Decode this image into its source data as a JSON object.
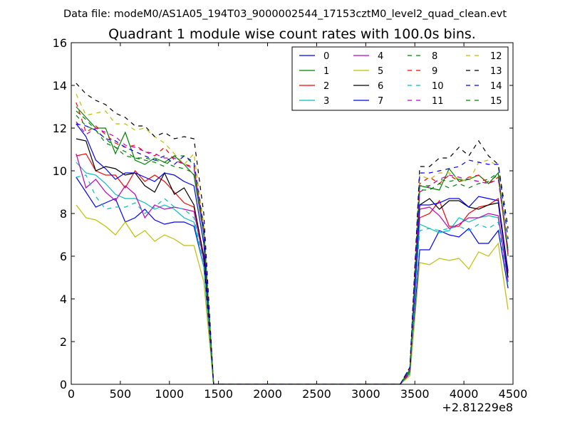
{
  "chart_data": {
    "type": "line",
    "suptitle": "Data file: modeM0/AS1A05_194T03_9000002544_17153cztM0_level2_quad_clean.evt",
    "title": "Quadrant 1 module wise count rates with 100.0s bins.",
    "xlabel": "",
    "ylabel": "",
    "xlim": [
      0,
      4500
    ],
    "ylim": [
      0,
      16
    ],
    "x_offset_label": "+2.81229e8",
    "xticks": [
      0,
      500,
      1000,
      1500,
      2000,
      2500,
      3000,
      3500,
      4000,
      4500
    ],
    "xtick_labels": [
      "0",
      "500",
      "1000",
      "1500",
      "2000",
      "2500",
      "3000",
      "3500",
      "4000",
      "4500"
    ],
    "yticks": [
      0,
      2,
      4,
      6,
      8,
      10,
      12,
      14,
      16
    ],
    "ytick_labels": [
      "0",
      "2",
      "4",
      "6",
      "8",
      "10",
      "12",
      "14",
      "16"
    ],
    "legend_location": "upper-right",
    "legend_columns": 4,
    "x": [
      50,
      150,
      250,
      350,
      450,
      550,
      650,
      750,
      850,
      950,
      1050,
      1150,
      1250,
      1350,
      1450,
      1550,
      1650,
      1750,
      1850,
      1950,
      2050,
      2150,
      2250,
      2350,
      2450,
      2550,
      2650,
      2750,
      2850,
      2950,
      3050,
      3150,
      3250,
      3350,
      3450,
      3550,
      3650,
      3750,
      3850,
      3950,
      4050,
      4150,
      4250,
      4350,
      4450
    ],
    "series": [
      {
        "name": "0",
        "color": "#0000ff",
        "dash": "solid",
        "values": [
          9.7,
          9.0,
          8.3,
          8.5,
          8.7,
          7.6,
          7.8,
          8.2,
          7.7,
          7.5,
          7.6,
          7.6,
          7.4,
          5.5,
          0,
          0,
          0,
          0,
          0,
          0,
          0,
          0,
          0,
          0,
          0,
          0,
          0,
          0,
          0,
          0,
          0,
          0,
          0,
          0,
          0.5,
          6.3,
          6.3,
          7.2,
          7.0,
          6.9,
          7.3,
          6.6,
          6.6,
          7.2,
          4.5
        ]
      },
      {
        "name": "1",
        "color": "#008000",
        "dash": "solid",
        "values": [
          13.0,
          12.5,
          12.0,
          12.0,
          10.8,
          11.8,
          10.5,
          10.3,
          10.6,
          10.4,
          10.7,
          10.3,
          9.8,
          7.0,
          0,
          0,
          0,
          0,
          0,
          0,
          0,
          0,
          0,
          0,
          0,
          0,
          0,
          0,
          0,
          0,
          0,
          0,
          0,
          0,
          0.7,
          9.3,
          9.2,
          9.1,
          10.1,
          9.5,
          9.6,
          9.8,
          9.4,
          9.9,
          6.0
        ]
      },
      {
        "name": "2",
        "color": "#ff0000",
        "dash": "solid",
        "values": [
          10.7,
          10.8,
          10.0,
          9.8,
          9.8,
          9.2,
          10.0,
          9.5,
          9.8,
          9.5,
          9.0,
          8.5,
          8.3,
          6.0,
          0,
          0,
          0,
          0,
          0,
          0,
          0,
          0,
          0,
          0,
          0,
          0,
          0,
          0,
          0,
          0,
          0,
          0,
          0,
          0,
          0.5,
          7.8,
          8.0,
          8.6,
          7.4,
          7.4,
          8.0,
          8.3,
          8.4,
          8.7,
          5.2
        ]
      },
      {
        "name": "3",
        "color": "#00bfbf",
        "dash": "solid",
        "values": [
          10.4,
          9.9,
          9.8,
          9.4,
          8.9,
          8.7,
          8.7,
          8.5,
          8.2,
          8.4,
          8.2,
          7.8,
          7.6,
          5.5,
          0,
          0,
          0,
          0,
          0,
          0,
          0,
          0,
          0,
          0,
          0,
          0,
          0,
          0,
          0,
          0,
          0,
          0,
          0,
          0,
          0.5,
          7.5,
          7.3,
          7.1,
          7.2,
          7.8,
          7.6,
          7.8,
          7.9,
          7.8,
          4.8
        ]
      },
      {
        "name": "4",
        "color": "#bf00bf",
        "dash": "solid",
        "values": [
          10.8,
          9.2,
          9.6,
          9.0,
          8.6,
          9.3,
          8.9,
          7.8,
          8.4,
          8.2,
          8.3,
          8.2,
          8.1,
          5.8,
          0,
          0,
          0,
          0,
          0,
          0,
          0,
          0,
          0,
          0,
          0,
          0,
          0,
          0,
          0,
          0,
          0,
          0,
          0,
          0,
          0.5,
          8.2,
          8.3,
          7.9,
          7.3,
          7.5,
          7.8,
          7.8,
          8.0,
          7.9,
          4.8
        ]
      },
      {
        "name": "5",
        "color": "#bfbf00",
        "dash": "solid",
        "values": [
          8.4,
          7.8,
          7.7,
          7.4,
          7.0,
          7.6,
          6.9,
          7.2,
          6.7,
          7.0,
          6.8,
          6.5,
          6.5,
          4.8,
          0,
          0,
          0,
          0,
          0,
          0,
          0,
          0,
          0,
          0,
          0,
          0,
          0,
          0,
          0,
          0,
          0,
          0,
          0,
          0,
          0.4,
          5.7,
          5.6,
          5.9,
          5.8,
          5.9,
          5.4,
          6.2,
          6.0,
          6.6,
          3.5
        ]
      },
      {
        "name": "6",
        "color": "#000000",
        "dash": "solid",
        "values": [
          11.5,
          11.4,
          10.0,
          10.2,
          10.1,
          9.8,
          9.9,
          9.3,
          9.0,
          9.9,
          8.9,
          9.2,
          8.4,
          6.0,
          0,
          0,
          0,
          0,
          0,
          0,
          0,
          0,
          0,
          0,
          0,
          0,
          0,
          0,
          0,
          0,
          0,
          0,
          0,
          0,
          0.6,
          8.4,
          8.7,
          8.2,
          8.6,
          8.6,
          8.3,
          8.2,
          8.4,
          8.5,
          5.0
        ]
      },
      {
        "name": "7",
        "color": "#0000ff",
        "dash": "solid",
        "values": [
          12.2,
          11.6,
          10.5,
          10.1,
          9.6,
          9.9,
          9.9,
          9.7,
          9.5,
          9.9,
          9.8,
          9.5,
          9.3,
          6.6,
          0,
          0,
          0,
          0,
          0,
          0,
          0,
          0,
          0,
          0,
          0,
          0,
          0,
          0,
          0,
          0,
          0,
          0,
          0,
          0,
          0.6,
          8.4,
          8.4,
          8.5,
          8.7,
          8.7,
          8.3,
          8.8,
          8.7,
          8.6,
          5.3
        ]
      },
      {
        "name": "8",
        "color": "#008000",
        "dash": "dashed",
        "values": [
          12.8,
          12.4,
          11.9,
          11.5,
          11.1,
          10.7,
          10.6,
          10.5,
          10.4,
          10.2,
          10.7,
          10.7,
          10.3,
          7.2,
          0,
          0,
          0,
          0,
          0,
          0,
          0,
          0,
          0,
          0,
          0,
          0,
          0,
          0,
          0,
          0,
          0,
          0,
          0,
          0,
          0.6,
          9.3,
          9.3,
          9.6,
          9.5,
          9.6,
          9.6,
          9.5,
          9.6,
          9.9,
          6.3
        ]
      },
      {
        "name": "9",
        "color": "#ff0000",
        "dash": "dashed",
        "values": [
          13.2,
          11.8,
          12.1,
          11.7,
          11.3,
          11.1,
          11.2,
          10.9,
          10.7,
          11.1,
          10.5,
          10.3,
          10.2,
          7.2,
          0,
          0,
          0,
          0,
          0,
          0,
          0,
          0,
          0,
          0,
          0,
          0,
          0,
          0,
          0,
          0,
          0,
          0,
          0,
          0,
          0.6,
          9.4,
          9.7,
          9.4,
          9.8,
          9.5,
          9.7,
          9.8,
          9.4,
          9.7,
          6.1
        ]
      },
      {
        "name": "10",
        "color": "#00bfbf",
        "dash": "dashed",
        "values": [
          9.7,
          9.8,
          8.8,
          8.2,
          8.3,
          8.3,
          8.5,
          8.0,
          8.3,
          8.7,
          8.3,
          8.2,
          7.8,
          5.6,
          0,
          0,
          0,
          0,
          0,
          0,
          0,
          0,
          0,
          0,
          0,
          0,
          0,
          0,
          0,
          0,
          0,
          0,
          0,
          0,
          0.5,
          7.2,
          7.3,
          7.2,
          7.3,
          7.4,
          7.2,
          7.5,
          7.3,
          7.6,
          4.6
        ]
      },
      {
        "name": "11",
        "color": "#bf00bf",
        "dash": "dashed",
        "values": [
          12.3,
          11.7,
          12.0,
          11.8,
          11.6,
          11.2,
          11.1,
          10.9,
          10.8,
          10.6,
          10.6,
          10.3,
          10.1,
          7.2,
          0,
          0,
          0,
          0,
          0,
          0,
          0,
          0,
          0,
          0,
          0,
          0,
          0,
          0,
          0,
          0,
          0,
          0,
          0,
          0,
          0.6,
          9.0,
          9.3,
          9.6,
          9.8,
          9.7,
          9.6,
          9.5,
          9.4,
          9.6,
          6.2
        ]
      },
      {
        "name": "12",
        "color": "#bfbf00",
        "dash": "dashed",
        "values": [
          13.6,
          12.6,
          12.7,
          12.8,
          12.2,
          12.2,
          11.9,
          12.0,
          11.6,
          11.3,
          10.8,
          10.3,
          10.8,
          7.5,
          0,
          0,
          0,
          0,
          0,
          0,
          0,
          0,
          0,
          0,
          0,
          0,
          0,
          0,
          0,
          0,
          0,
          0,
          0,
          0,
          0.6,
          9.8,
          9.6,
          9.9,
          9.9,
          9.6,
          9.5,
          10.4,
          10.5,
          10.2,
          6.8
        ]
      },
      {
        "name": "13",
        "color": "#000000",
        "dash": "dashed",
        "values": [
          14.1,
          13.6,
          13.3,
          13.1,
          12.7,
          12.5,
          12.1,
          12.1,
          11.6,
          11.8,
          11.5,
          11.6,
          11.5,
          8.0,
          0,
          0,
          0,
          0,
          0,
          0,
          0,
          0,
          0,
          0,
          0,
          0,
          0,
          0,
          0,
          0,
          0,
          0,
          0,
          0,
          0.8,
          10.2,
          10.2,
          10.6,
          10.6,
          11.1,
          10.7,
          11.4,
          10.7,
          10.3,
          7.3
        ]
      },
      {
        "name": "14",
        "color": "#0000ff",
        "dash": "dashed",
        "values": [
          12.2,
          12.1,
          11.9,
          11.5,
          11.4,
          11.1,
          10.9,
          10.7,
          10.5,
          10.7,
          10.3,
          10.7,
          10.4,
          7.3,
          0,
          0,
          0,
          0,
          0,
          0,
          0,
          0,
          0,
          0,
          0,
          0,
          0,
          0,
          0,
          0,
          0,
          0,
          0,
          0,
          0.8,
          9.9,
          9.9,
          10.0,
          10.1,
          10.2,
          10.5,
          10.4,
          10.3,
          10.3,
          6.8
        ]
      },
      {
        "name": "15",
        "color": "#008000",
        "dash": "dashed",
        "values": [
          12.6,
          12.1,
          11.9,
          11.3,
          11.1,
          10.9,
          10.6,
          10.6,
          10.5,
          10.4,
          10.2,
          10.1,
          9.9,
          7.0,
          0,
          0,
          0,
          0,
          0,
          0,
          0,
          0,
          0,
          0,
          0,
          0,
          0,
          0,
          0,
          0,
          0,
          0,
          0,
          0,
          0.6,
          9.1,
          9.1,
          9.4,
          9.2,
          9.4,
          9.2,
          9.4,
          9.5,
          9.8,
          6.3
        ]
      }
    ]
  }
}
